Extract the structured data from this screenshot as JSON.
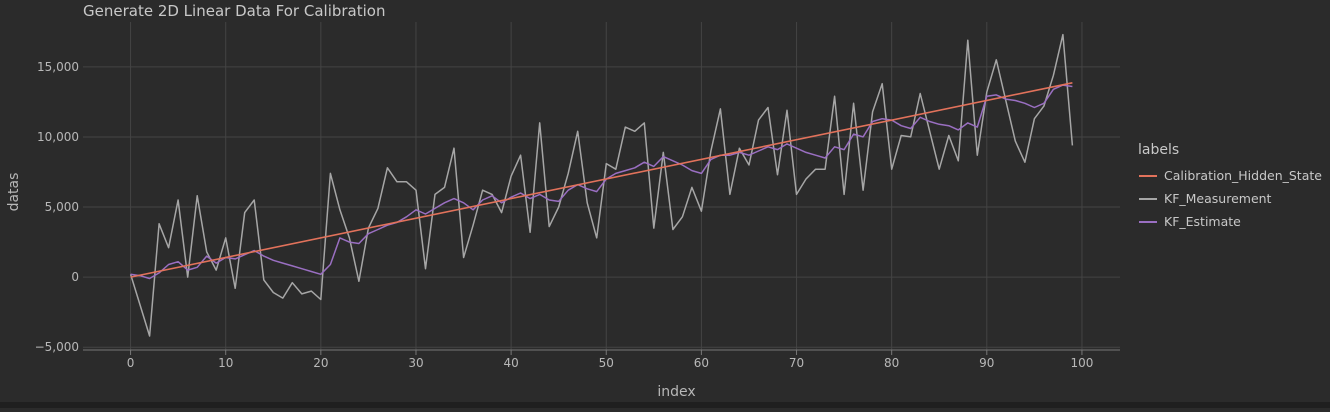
{
  "chart_data": {
    "type": "line",
    "title": "Generate 2D Linear Data For Calibration",
    "xlabel": "index",
    "ylabel": "datas",
    "xlim": [
      -5,
      104
    ],
    "ylim": [
      -5200,
      18200
    ],
    "x_ticks": [
      0,
      10,
      20,
      30,
      40,
      50,
      60,
      70,
      80,
      90,
      100
    ],
    "y_ticks": [
      -5000,
      0,
      5000,
      10000,
      15000
    ],
    "x_tick_labels": [
      "0",
      "10",
      "20",
      "30",
      "40",
      "50",
      "60",
      "70",
      "80",
      "90",
      "100"
    ],
    "y_tick_labels": [
      "−5,000",
      "0",
      "5,000",
      "10,000",
      "15,000"
    ],
    "grid": true,
    "legend": {
      "title": "labels",
      "position": "right"
    },
    "background": "#2b2b2b",
    "series": [
      {
        "name": "Calibration_Hidden_State",
        "color": "#e2725b",
        "x": [
          0,
          99
        ],
        "values": [
          0,
          13860
        ]
      },
      {
        "name": "KF_Measurement",
        "color": "#a6a6a6",
        "x": [
          0,
          1,
          2,
          3,
          4,
          5,
          6,
          7,
          8,
          9,
          10,
          11,
          12,
          13,
          14,
          15,
          16,
          17,
          18,
          19,
          20,
          21,
          22,
          23,
          24,
          25,
          26,
          27,
          28,
          29,
          30,
          31,
          32,
          33,
          34,
          35,
          36,
          37,
          38,
          39,
          40,
          41,
          42,
          43,
          44,
          45,
          46,
          47,
          48,
          49,
          50,
          51,
          52,
          53,
          54,
          55,
          56,
          57,
          58,
          59,
          60,
          61,
          62,
          63,
          64,
          65,
          66,
          67,
          68,
          69,
          70,
          71,
          72,
          73,
          74,
          75,
          76,
          77,
          78,
          79,
          80,
          81,
          82,
          83,
          84,
          85,
          86,
          87,
          88,
          89,
          90,
          91,
          92,
          93,
          94,
          95,
          96,
          97,
          98,
          99
        ],
        "values": [
          200,
          -2000,
          -4200,
          3800,
          2100,
          5500,
          0,
          5800,
          1800,
          500,
          2800,
          -800,
          4600,
          5500,
          -200,
          -1100,
          -1500,
          -400,
          -1200,
          -1000,
          -1600,
          7400,
          4800,
          2800,
          -300,
          3500,
          4900,
          7800,
          6800,
          6800,
          6200,
          600,
          5900,
          6400,
          9200,
          1400,
          3700,
          6200,
          5900,
          4600,
          7200,
          8700,
          3200,
          11000,
          3600,
          5000,
          7400,
          10400,
          5300,
          2800,
          8100,
          7700,
          10700,
          10400,
          11000,
          3500,
          8900,
          3400,
          4300,
          6400,
          4700,
          9000,
          12000,
          5900,
          9200,
          8000,
          11200,
          12100,
          7300,
          11900,
          5900,
          7000,
          7700,
          7700,
          12900,
          5900,
          12400,
          6200,
          11800,
          13800,
          7700,
          10100,
          10000,
          13100,
          10400,
          7700,
          10100,
          8300,
          16900,
          8700,
          13200,
          15500,
          12600,
          9700,
          8200,
          11300,
          12200,
          14400,
          17300,
          9400
        ]
      },
      {
        "name": "KF_Estimate",
        "color": "#9a6fc2",
        "x": [
          0,
          1,
          2,
          3,
          4,
          5,
          6,
          7,
          8,
          9,
          10,
          11,
          12,
          13,
          14,
          15,
          16,
          17,
          18,
          19,
          20,
          21,
          22,
          23,
          24,
          25,
          26,
          27,
          28,
          29,
          30,
          31,
          32,
          33,
          34,
          35,
          36,
          37,
          38,
          39,
          40,
          41,
          42,
          43,
          44,
          45,
          46,
          47,
          48,
          49,
          50,
          51,
          52,
          53,
          54,
          55,
          56,
          57,
          58,
          59,
          60,
          61,
          62,
          63,
          64,
          65,
          66,
          67,
          68,
          69,
          70,
          71,
          72,
          73,
          74,
          75,
          76,
          77,
          78,
          79,
          80,
          81,
          82,
          83,
          84,
          85,
          86,
          87,
          88,
          89,
          90,
          91,
          92,
          93,
          94,
          95,
          96,
          97,
          98,
          99
        ],
        "values": [
          200,
          100,
          -100,
          300,
          900,
          1100,
          500,
          700,
          1500,
          1000,
          1400,
          1300,
          1600,
          1900,
          1500,
          1200,
          1000,
          800,
          600,
          400,
          200,
          900,
          2800,
          2500,
          2400,
          3100,
          3400,
          3700,
          3900,
          4300,
          4800,
          4500,
          4900,
          5300,
          5600,
          5300,
          4800,
          5500,
          5800,
          5300,
          5700,
          6000,
          5600,
          5900,
          5500,
          5400,
          6200,
          6600,
          6300,
          6100,
          7000,
          7400,
          7600,
          7800,
          8200,
          7900,
          8600,
          8300,
          8000,
          7600,
          7400,
          8400,
          8700,
          8700,
          8900,
          8700,
          9000,
          9300,
          9100,
          9500,
          9200,
          8900,
          8700,
          8500,
          9300,
          9100,
          10200,
          10000,
          11100,
          11300,
          11200,
          10800,
          10600,
          11400,
          11100,
          10900,
          10800,
          10500,
          11000,
          10700,
          12900,
          13000,
          12700,
          12600,
          12400,
          12100,
          12400,
          13400,
          13700,
          13600
        ]
      }
    ]
  }
}
